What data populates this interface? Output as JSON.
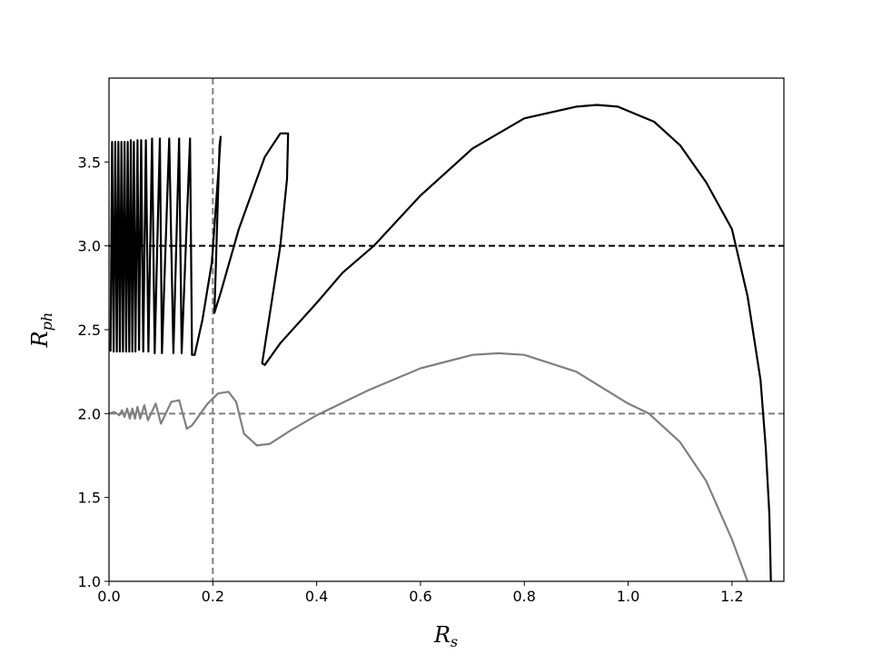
{
  "chart_data": {
    "type": "line",
    "title": "",
    "xlabel": {
      "main": "R",
      "sub": "s"
    },
    "ylabel": {
      "main": "R",
      "sub": "ph"
    },
    "xlim": [
      0.0,
      1.3
    ],
    "ylim": [
      1.0,
      4.0
    ],
    "x_ticks": [
      "0.0",
      "0.2",
      "0.4",
      "0.6",
      "0.8",
      "1.0",
      "1.2"
    ],
    "y_ticks": [
      "1.0",
      "1.5",
      "2.0",
      "2.5",
      "3.0",
      "3.5"
    ],
    "grid": false,
    "legend": "none",
    "reference_lines": [
      {
        "orientation": "horizontal",
        "value": 3.0,
        "style": "dashed",
        "color": "#000000"
      },
      {
        "orientation": "horizontal",
        "value": 2.0,
        "style": "dashed",
        "color": "#808080"
      },
      {
        "orientation": "vertical",
        "value": 0.2,
        "style": "dashed",
        "color": "#808080"
      }
    ],
    "series": [
      {
        "color": "#000000",
        "style": "solid",
        "points": [
          [
            0.003,
            2.37
          ],
          [
            0.006,
            3.62
          ],
          [
            0.009,
            2.37
          ],
          [
            0.012,
            3.62
          ],
          [
            0.015,
            2.37
          ],
          [
            0.018,
            3.62
          ],
          [
            0.021,
            2.37
          ],
          [
            0.024,
            3.62
          ],
          [
            0.027,
            2.37
          ],
          [
            0.03,
            3.62
          ],
          [
            0.033,
            2.37
          ],
          [
            0.036,
            3.62
          ],
          [
            0.039,
            2.37
          ],
          [
            0.042,
            3.63
          ],
          [
            0.045,
            2.37
          ],
          [
            0.048,
            3.62
          ],
          [
            0.051,
            2.37
          ],
          [
            0.055,
            3.63
          ],
          [
            0.058,
            2.38
          ],
          [
            0.062,
            3.63
          ],
          [
            0.066,
            2.37
          ],
          [
            0.071,
            3.63
          ],
          [
            0.076,
            2.37
          ],
          [
            0.083,
            3.64
          ],
          [
            0.088,
            2.36
          ],
          [
            0.098,
            3.64
          ],
          [
            0.102,
            2.36
          ],
          [
            0.116,
            3.64
          ],
          [
            0.124,
            2.36
          ],
          [
            0.135,
            3.64
          ],
          [
            0.14,
            2.36
          ],
          [
            0.156,
            3.64
          ],
          [
            0.16,
            2.35
          ],
          [
            0.165,
            2.35
          ],
          [
            0.18,
            2.56
          ],
          [
            0.198,
            2.9
          ],
          [
            0.212,
            3.5
          ],
          [
            0.215,
            3.65
          ],
          [
            0.213,
            3.6
          ],
          [
            0.205,
            2.8
          ],
          [
            0.203,
            2.6
          ],
          [
            0.215,
            2.72
          ],
          [
            0.25,
            3.1
          ],
          [
            0.3,
            3.53
          ],
          [
            0.33,
            3.67
          ],
          [
            0.345,
            3.67
          ],
          [
            0.343,
            3.4
          ],
          [
            0.33,
            3.0
          ],
          [
            0.3,
            2.4
          ],
          [
            0.295,
            2.3
          ],
          [
            0.3,
            2.29
          ],
          [
            0.33,
            2.42
          ],
          [
            0.4,
            2.66
          ],
          [
            0.45,
            2.84
          ],
          [
            0.51,
            3.0
          ],
          [
            0.6,
            3.3
          ],
          [
            0.7,
            3.58
          ],
          [
            0.8,
            3.76
          ],
          [
            0.9,
            3.83
          ],
          [
            0.94,
            3.84
          ],
          [
            0.98,
            3.83
          ],
          [
            1.05,
            3.74
          ],
          [
            1.1,
            3.6
          ],
          [
            1.15,
            3.38
          ],
          [
            1.2,
            3.1
          ],
          [
            1.23,
            2.7
          ],
          [
            1.255,
            2.2
          ],
          [
            1.265,
            1.8
          ],
          [
            1.272,
            1.4
          ],
          [
            1.275,
            1.0
          ]
        ]
      },
      {
        "color": "#808080",
        "style": "solid",
        "points": [
          [
            0.0,
            2.0
          ],
          [
            0.01,
            2.01
          ],
          [
            0.02,
            1.99
          ],
          [
            0.025,
            2.02
          ],
          [
            0.03,
            1.98
          ],
          [
            0.035,
            2.03
          ],
          [
            0.04,
            1.97
          ],
          [
            0.045,
            2.03
          ],
          [
            0.05,
            1.97
          ],
          [
            0.055,
            2.04
          ],
          [
            0.06,
            1.97
          ],
          [
            0.068,
            2.05
          ],
          [
            0.075,
            1.96
          ],
          [
            0.09,
            2.06
          ],
          [
            0.1,
            1.94
          ],
          [
            0.12,
            2.07
          ],
          [
            0.135,
            2.08
          ],
          [
            0.15,
            1.91
          ],
          [
            0.16,
            1.93
          ],
          [
            0.19,
            2.06
          ],
          [
            0.21,
            2.12
          ],
          [
            0.23,
            2.13
          ],
          [
            0.245,
            2.07
          ],
          [
            0.26,
            1.88
          ],
          [
            0.285,
            1.81
          ],
          [
            0.31,
            1.82
          ],
          [
            0.35,
            1.9
          ],
          [
            0.4,
            1.99
          ],
          [
            0.5,
            2.14
          ],
          [
            0.6,
            2.27
          ],
          [
            0.7,
            2.35
          ],
          [
            0.75,
            2.36
          ],
          [
            0.8,
            2.35
          ],
          [
            0.9,
            2.25
          ],
          [
            1.0,
            2.06
          ],
          [
            1.04,
            2.0
          ],
          [
            1.1,
            1.83
          ],
          [
            1.15,
            1.6
          ],
          [
            1.2,
            1.25
          ],
          [
            1.23,
            1.0
          ]
        ]
      }
    ]
  }
}
